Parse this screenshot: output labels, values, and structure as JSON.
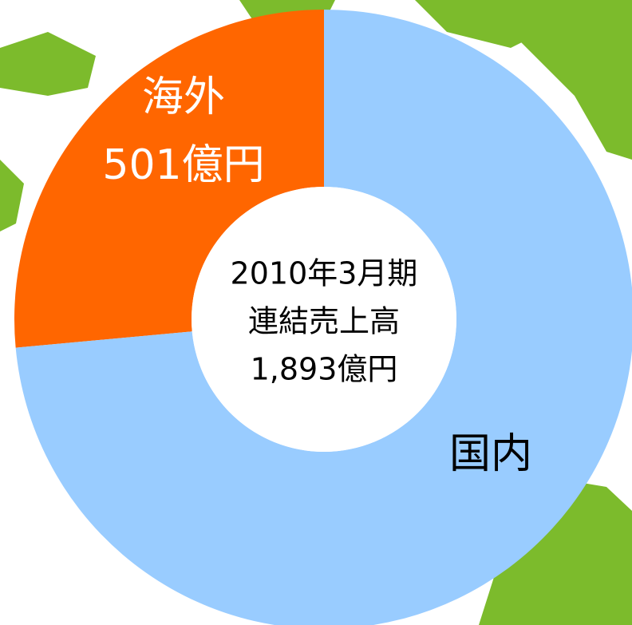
{
  "chart_data": {
    "type": "donut",
    "categories": [
      "海外",
      "国内"
    ],
    "values": [
      501,
      1392
    ],
    "value_labels": [
      "501億円",
      null
    ],
    "colors": [
      "#ff6600",
      "#99ccff"
    ],
    "center_label": [
      "2010年3月期",
      "連結売上高",
      "1,893億円"
    ]
  }
}
